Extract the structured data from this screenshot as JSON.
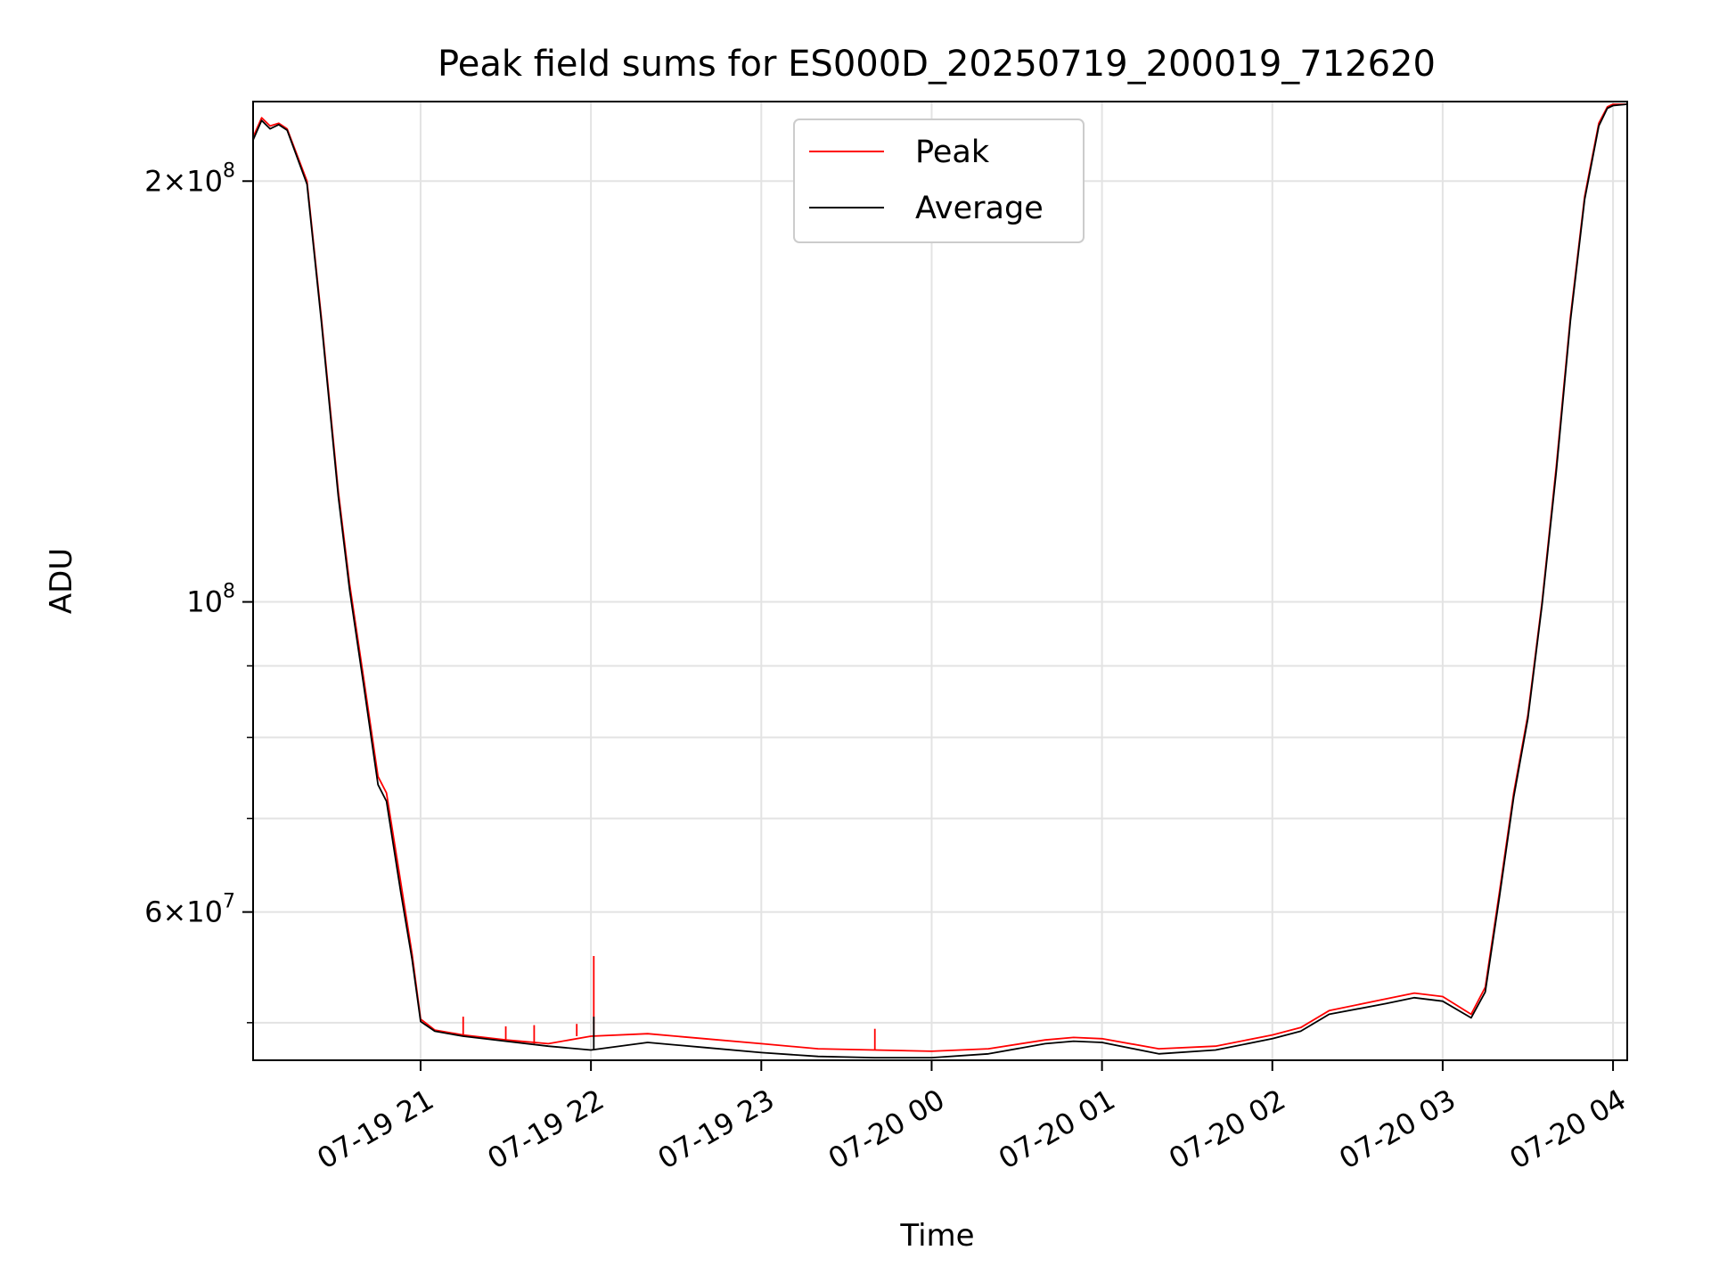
{
  "chart_data": {
    "type": "line",
    "title": "Peak field sums for ES000D_20250719_200019_712620",
    "xlabel": "Time",
    "ylabel": "ADU",
    "yscale": "log",
    "xlim": [
      "2025-07-19 20:01",
      "2025-07-20 04:05"
    ],
    "ylim": [
      47000000,
      228000000
    ],
    "grid": true,
    "legend_position": "upper center",
    "x_ticks": [
      {
        "value": "2025-07-19 21:00",
        "label": "07-19 21"
      },
      {
        "value": "2025-07-19 22:00",
        "label": "07-19 22"
      },
      {
        "value": "2025-07-19 23:00",
        "label": "07-19 23"
      },
      {
        "value": "2025-07-20 00:00",
        "label": "07-20 00"
      },
      {
        "value": "2025-07-20 01:00",
        "label": "07-20 01"
      },
      {
        "value": "2025-07-20 02:00",
        "label": "07-20 02"
      },
      {
        "value": "2025-07-20 03:00",
        "label": "07-20 03"
      },
      {
        "value": "2025-07-20 04:00",
        "label": "07-20 04"
      }
    ],
    "y_ticks": [
      {
        "value": 200000000,
        "mantissa": "2",
        "exponent": "8"
      },
      {
        "value": 100000000,
        "mantissa": "",
        "exponent": "8"
      },
      {
        "value": 60000000,
        "mantissa": "6",
        "exponent": "7"
      }
    ],
    "y_minor_ticks": [
      50000000,
      70000000,
      80000000,
      90000000
    ],
    "series": [
      {
        "name": "Peak",
        "color": "#ff0000",
        "x": [
          "2025-07-19 20:01",
          "2025-07-19 20:04",
          "2025-07-19 20:07",
          "2025-07-19 20:10",
          "2025-07-19 20:13",
          "2025-07-19 20:20",
          "2025-07-19 20:25",
          "2025-07-19 20:31",
          "2025-07-19 20:35",
          "2025-07-19 20:40",
          "2025-07-19 20:45",
          "2025-07-19 20:48",
          "2025-07-19 20:53",
          "2025-07-19 20:57",
          "2025-07-19 21:00",
          "2025-07-19 21:05",
          "2025-07-19 21:15",
          "2025-07-19 21:30",
          "2025-07-19 21:45",
          "2025-07-19 22:00",
          "2025-07-19 22:20",
          "2025-07-19 22:40",
          "2025-07-19 23:00",
          "2025-07-19 23:20",
          "2025-07-19 23:40",
          "2025-07-20 00:00",
          "2025-07-20 00:20",
          "2025-07-20 00:40",
          "2025-07-20 00:50",
          "2025-07-20 01:00",
          "2025-07-20 01:20",
          "2025-07-20 01:40",
          "2025-07-20 02:00",
          "2025-07-20 02:10",
          "2025-07-20 02:20",
          "2025-07-20 02:40",
          "2025-07-20 02:50",
          "2025-07-20 03:00",
          "2025-07-20 03:10",
          "2025-07-20 03:15",
          "2025-07-20 03:20",
          "2025-07-20 03:25",
          "2025-07-20 03:30",
          "2025-07-20 03:35",
          "2025-07-20 03:40",
          "2025-07-20 03:45",
          "2025-07-20 03:50",
          "2025-07-20 03:55",
          "2025-07-20 03:58",
          "2025-07-20 04:00",
          "2025-07-20 04:05"
        ],
        "values": [
          215000000,
          222000000,
          219000000,
          220000000,
          218000000,
          200000000,
          160000000,
          120000000,
          103000000,
          88000000,
          75000000,
          73000000,
          63000000,
          56000000,
          50300000,
          49400000,
          49000000,
          48600000,
          48300000,
          48900000,
          49100000,
          48700000,
          48300000,
          47900000,
          47800000,
          47700000,
          47900000,
          48600000,
          48800000,
          48700000,
          47900000,
          48100000,
          49000000,
          49600000,
          51000000,
          52000000,
          52500000,
          52200000,
          50700000,
          53000000,
          62000000,
          73000000,
          83000000,
          100000000,
          125000000,
          160000000,
          195000000,
          220000000,
          226000000,
          227000000,
          227000000
        ],
        "spikes": [
          {
            "x": "2025-07-19 21:15",
            "value": 50500000
          },
          {
            "x": "2025-07-19 21:30",
            "value": 49700000
          },
          {
            "x": "2025-07-19 21:40",
            "value": 49800000
          },
          {
            "x": "2025-07-19 21:55",
            "value": 49900000
          },
          {
            "x": "2025-07-19 22:01",
            "value": 55800000
          },
          {
            "x": "2025-07-19 23:40",
            "value": 49500000
          }
        ]
      },
      {
        "name": "Average",
        "color": "#000000",
        "x": [
          "2025-07-19 20:01",
          "2025-07-19 20:04",
          "2025-07-19 20:07",
          "2025-07-19 20:10",
          "2025-07-19 20:13",
          "2025-07-19 20:20",
          "2025-07-19 20:25",
          "2025-07-19 20:31",
          "2025-07-19 20:35",
          "2025-07-19 20:40",
          "2025-07-19 20:45",
          "2025-07-19 20:48",
          "2025-07-19 20:53",
          "2025-07-19 20:57",
          "2025-07-19 21:00",
          "2025-07-19 21:05",
          "2025-07-19 21:15",
          "2025-07-19 21:30",
          "2025-07-19 21:45",
          "2025-07-19 22:00",
          "2025-07-19 22:20",
          "2025-07-19 22:40",
          "2025-07-19 23:00",
          "2025-07-19 23:20",
          "2025-07-19 23:40",
          "2025-07-20 00:00",
          "2025-07-20 00:20",
          "2025-07-20 00:40",
          "2025-07-20 00:50",
          "2025-07-20 01:00",
          "2025-07-20 01:20",
          "2025-07-20 01:40",
          "2025-07-20 02:00",
          "2025-07-20 02:10",
          "2025-07-20 02:20",
          "2025-07-20 02:40",
          "2025-07-20 02:50",
          "2025-07-20 03:00",
          "2025-07-20 03:10",
          "2025-07-20 03:15",
          "2025-07-20 03:20",
          "2025-07-20 03:25",
          "2025-07-20 03:30",
          "2025-07-20 03:35",
          "2025-07-20 03:40",
          "2025-07-20 03:45",
          "2025-07-20 03:50",
          "2025-07-20 03:55",
          "2025-07-20 03:58",
          "2025-07-20 04:00",
          "2025-07-20 04:05"
        ],
        "values": [
          214000000,
          221000000,
          218000000,
          219500000,
          217500000,
          199000000,
          159000000,
          119000000,
          102000000,
          87000000,
          74000000,
          72000000,
          62000000,
          55500000,
          50100000,
          49300000,
          48900000,
          48500000,
          48100000,
          47800000,
          48400000,
          48000000,
          47600000,
          47300000,
          47200000,
          47200000,
          47500000,
          48300000,
          48500000,
          48400000,
          47500000,
          47800000,
          48700000,
          49300000,
          50700000,
          51600000,
          52100000,
          51800000,
          50400000,
          52600000,
          61500000,
          72500000,
          82500000,
          99500000,
          124000000,
          159000000,
          194000000,
          219000000,
          225500000,
          226500000,
          227000000
        ],
        "spikes": [
          {
            "x": "2025-07-19 22:01",
            "value": 50500000
          }
        ]
      }
    ]
  }
}
